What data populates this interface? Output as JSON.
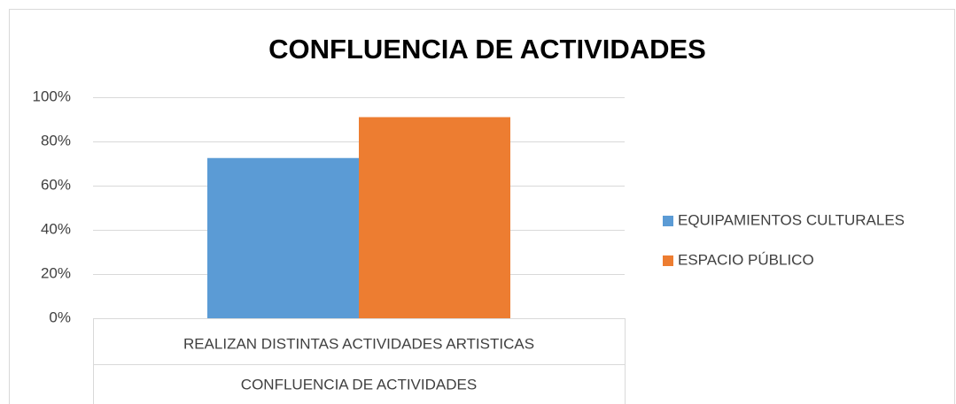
{
  "chart_data": {
    "type": "bar",
    "title": "CONFLUENCIA DE ACTIVIDADES",
    "categories": [
      "REALIZAN DISTINTAS ACTIVIDADES ARTISTICAS"
    ],
    "category_group": "CONFLUENCIA DE ACTIVIDADES",
    "series": [
      {
        "name": "EQUIPAMIENTOS CULTURALES",
        "color": "#5b9bd5",
        "values": [
          72.5
        ]
      },
      {
        "name": "ESPACIO PÚBLICO",
        "color": "#ed7d31",
        "values": [
          91
        ]
      }
    ],
    "ylim": [
      0,
      100
    ],
    "yticks": [
      {
        "value": 0,
        "label": "0%"
      },
      {
        "value": 20,
        "label": "20%"
      },
      {
        "value": 40,
        "label": "40%"
      },
      {
        "value": 60,
        "label": "60%"
      },
      {
        "value": 80,
        "label": "80%"
      },
      {
        "value": 100,
        "label": "100%"
      }
    ],
    "grid": true,
    "legend": "right"
  }
}
